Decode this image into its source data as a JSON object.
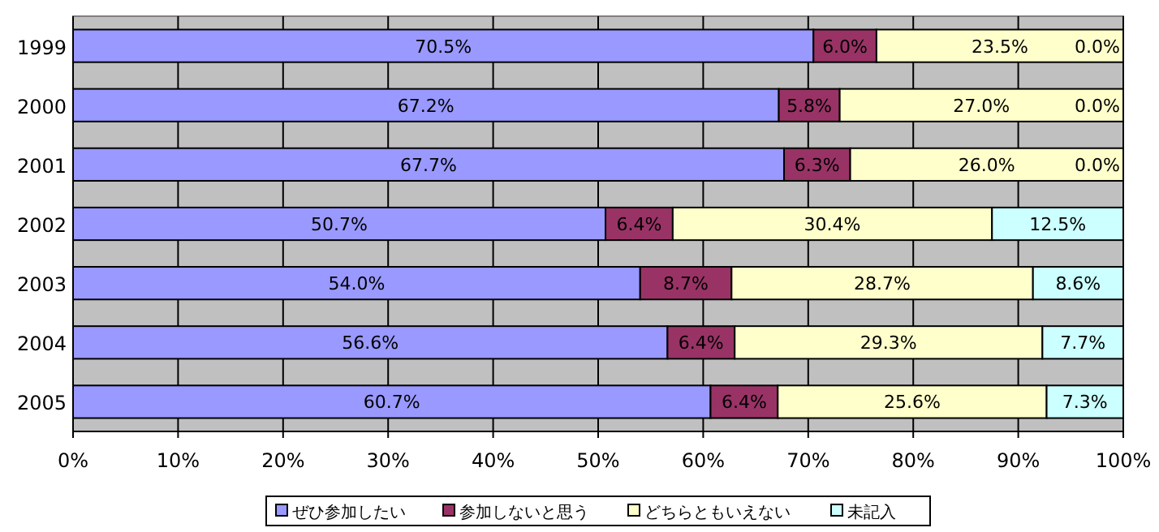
{
  "chart_data": {
    "type": "bar",
    "orientation": "horizontal",
    "stacked": true,
    "categories": [
      "1999",
      "2000",
      "2001",
      "2002",
      "2003",
      "2004",
      "2005"
    ],
    "series": [
      {
        "name": "ぜひ参加したい",
        "color": "#9999ff",
        "values": [
          70.5,
          67.2,
          67.7,
          50.7,
          54.0,
          56.6,
          60.7
        ],
        "value_labels": [
          "70.5%",
          "67.2%",
          "67.7%",
          "50.7%",
          "54.0%",
          "56.6%",
          "60.7%"
        ]
      },
      {
        "name": "参加しないと思う",
        "color": "#993366",
        "values": [
          6.0,
          5.8,
          6.3,
          6.4,
          8.7,
          6.4,
          6.4
        ],
        "value_labels": [
          "6.0%",
          "5.8%",
          "6.3%",
          "6.4%",
          "8.7%",
          "6.4%",
          "6.4%"
        ]
      },
      {
        "name": "どちらともいえない",
        "color": "#ffffcc",
        "values": [
          23.5,
          27.0,
          26.0,
          30.4,
          28.7,
          29.3,
          25.6
        ],
        "value_labels": [
          "23.5%",
          "27.0%",
          "26.0%",
          "30.4%",
          "28.7%",
          "29.3%",
          "25.6%"
        ]
      },
      {
        "name": "未記入",
        "color": "#ccffff",
        "values": [
          0.0,
          0.0,
          0.0,
          12.5,
          8.6,
          7.7,
          7.3
        ],
        "value_labels": [
          "0.0%",
          "0.0%",
          "0.0%",
          "12.5%",
          "8.6%",
          "7.7%",
          "7.3%"
        ]
      }
    ],
    "xlim": [
      0,
      100
    ],
    "xticks": [
      {
        "value": 0,
        "label": "0%"
      },
      {
        "value": 10,
        "label": "10%"
      },
      {
        "value": 20,
        "label": "20%"
      },
      {
        "value": 30,
        "label": "30%"
      },
      {
        "value": 40,
        "label": "40%"
      },
      {
        "value": 50,
        "label": "50%"
      },
      {
        "value": 60,
        "label": "60%"
      },
      {
        "value": 70,
        "label": "70%"
      },
      {
        "value": 80,
        "label": "80%"
      },
      {
        "value": 90,
        "label": "90%"
      },
      {
        "value": 100,
        "label": "100%"
      }
    ],
    "grid": "x",
    "legend": "bottom"
  }
}
